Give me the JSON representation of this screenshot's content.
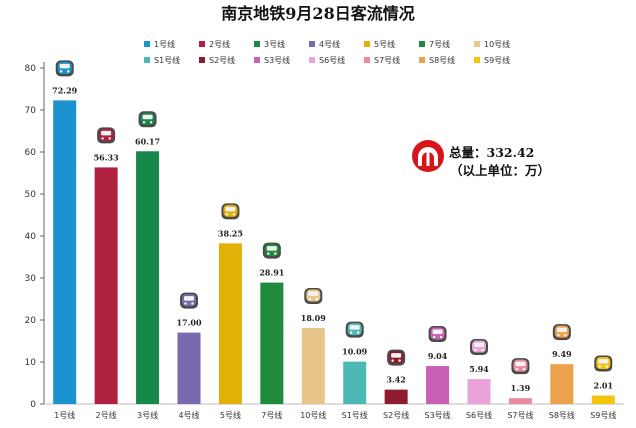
{
  "chart_data": {
    "type": "bar",
    "title": "南京地铁9月28日客流情况",
    "categories": [
      "1号线",
      "2号线",
      "3号线",
      "4号线",
      "5号线",
      "7号线",
      "10号线",
      "S1号线",
      "S2号线",
      "S3号线",
      "S6号线",
      "S7号线",
      "S8号线",
      "S9号线"
    ],
    "values": [
      72.29,
      56.33,
      60.17,
      17.0,
      38.25,
      28.91,
      18.09,
      10.09,
      3.42,
      9.04,
      5.94,
      1.39,
      9.49,
      2.01
    ],
    "value_labels": [
      "72.29",
      "56.33",
      "60.17",
      "17.00",
      "38.25",
      "28.91",
      "18.09",
      "10.09",
      "3.42",
      "9.04",
      "5.94",
      "1.39",
      "9.49",
      "2.01"
    ],
    "colors": [
      "#1b93cf",
      "#b02040",
      "#16884c",
      "#7a69ad",
      "#e3b006",
      "#1f8b3b",
      "#e8c58b",
      "#4db9b5",
      "#8f1b2e",
      "#c861b6",
      "#eaa3d9",
      "#e98ca0",
      "#eca24d",
      "#f4c40c"
    ],
    "icon": "train-icon",
    "ylim": [
      0,
      80
    ],
    "yticks": [
      0,
      10,
      20,
      30,
      40,
      50,
      60,
      70,
      80
    ],
    "grid": false,
    "legend": "top-center"
  },
  "annotation": {
    "logo": "nanjing-metro-logo-icon",
    "total": "总量：332.42",
    "unit": "（以上单位：万）"
  }
}
